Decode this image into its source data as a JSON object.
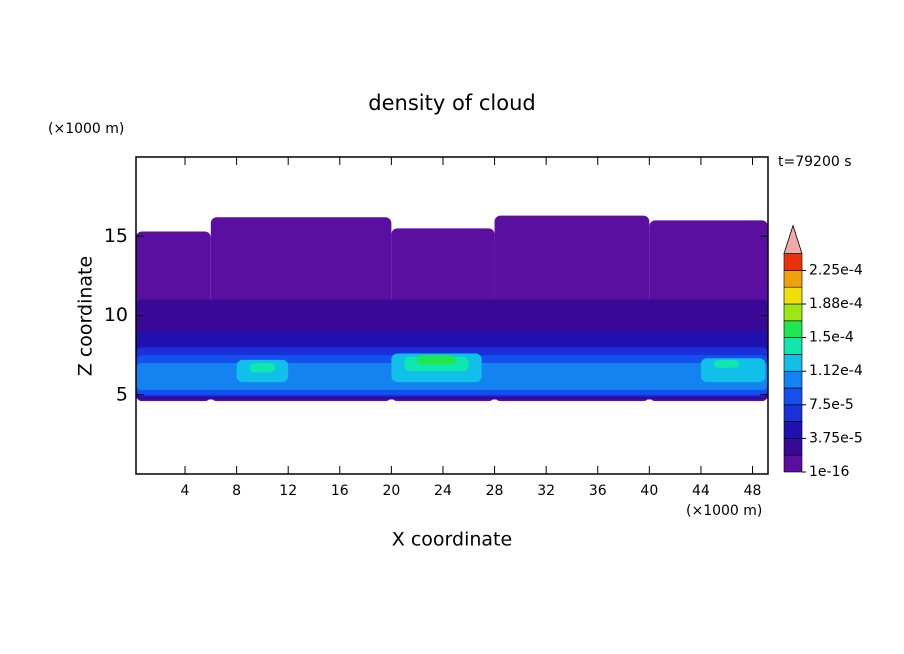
{
  "chart_data": {
    "type": "contour",
    "title": "density of cloud",
    "time_label": "t=79200 s",
    "x_label": "X coordinate",
    "y_label": "Z coordinate",
    "x_unit": "(×1000 m)",
    "y_unit": "(×1000 m)",
    "xlim": [
      0.2,
      49.2
    ],
    "xticks": [
      4,
      8,
      12,
      16,
      20,
      24,
      28,
      32,
      36,
      40,
      44,
      48
    ],
    "ylim": [
      0,
      20
    ],
    "yticks": [
      5,
      10,
      15
    ],
    "regions": [
      {
        "x": [
          0.2,
          6
        ],
        "z": [
          4.6,
          15.3
        ],
        "value": 1e-16
      },
      {
        "x": [
          6,
          20
        ],
        "z": [
          4.6,
          16.2
        ],
        "value": 1e-16
      },
      {
        "x": [
          20,
          28
        ],
        "z": [
          4.6,
          15.5
        ],
        "value": 1e-16
      },
      {
        "x": [
          28,
          40
        ],
        "z": [
          4.6,
          16.3
        ],
        "value": 1e-16
      },
      {
        "x": [
          40,
          49.2
        ],
        "z": [
          4.6,
          16
        ],
        "value": 1e-16
      },
      {
        "x": [
          0.2,
          49.2
        ],
        "z": [
          4.7,
          11
        ],
        "value": 2e-05
      },
      {
        "x": [
          0.2,
          49.2
        ],
        "z": [
          4.8,
          9
        ],
        "value": 4e-05
      },
      {
        "x": [
          0.2,
          49.2
        ],
        "z": [
          4.9,
          8
        ],
        "value": 6e-05
      },
      {
        "x": [
          0.2,
          49.2
        ],
        "z": [
          5,
          7.5
        ],
        "value": 8e-05
      },
      {
        "x": [
          0.2,
          49.2
        ],
        "z": [
          5.3,
          7
        ],
        "value": 0.0001
      },
      {
        "x": [
          8,
          12
        ],
        "z": [
          5.8,
          7.2
        ],
        "value": 0.000115
      },
      {
        "x": [
          20,
          27
        ],
        "z": [
          5.8,
          7.6
        ],
        "value": 0.000115
      },
      {
        "x": [
          44,
          49
        ],
        "z": [
          5.8,
          7.3
        ],
        "value": 0.000115
      },
      {
        "x": [
          9,
          11
        ],
        "z": [
          6.4,
          7
        ],
        "value": 0.000135
      },
      {
        "x": [
          21,
          26
        ],
        "z": [
          6.5,
          7.4
        ],
        "value": 0.000135
      },
      {
        "x": [
          45,
          47
        ],
        "z": [
          6.7,
          7.2
        ],
        "value": 0.000135
      },
      {
        "x": [
          22,
          25
        ],
        "z": [
          6.9,
          7.5
        ],
        "value": 0.000155
      }
    ],
    "levels": [
      1e-16,
      1.875e-05,
      3.75e-05,
      5.625e-05,
      7.5e-05,
      9.375e-05,
      0.0001125,
      0.00013125,
      0.00015,
      0.00016875,
      0.0001875,
      0.00020625,
      0.000225
    ],
    "colors": [
      "#5a0fa0",
      "#3a0896",
      "#2010b0",
      "#1a30d8",
      "#1450ee",
      "#1482f0",
      "#10c0e8",
      "#10e6b0",
      "#20e650",
      "#a0e614",
      "#f0e00a",
      "#f0a00a",
      "#e8320a"
    ],
    "extend_color": "#f4a8a8",
    "colorbar_ticks": [
      {
        "value": 1e-16,
        "label": "1e-16"
      },
      {
        "value": 3.75e-05,
        "label": "3.75e-5"
      },
      {
        "value": 7.5e-05,
        "label": "7.5e-5"
      },
      {
        "value": 0.0001125,
        "label": "1.12e-4"
      },
      {
        "value": 0.00015,
        "label": "1.5e-4"
      },
      {
        "value": 0.0001875,
        "label": "1.88e-4"
      },
      {
        "value": 0.000225,
        "label": "2.25e-4"
      }
    ]
  }
}
